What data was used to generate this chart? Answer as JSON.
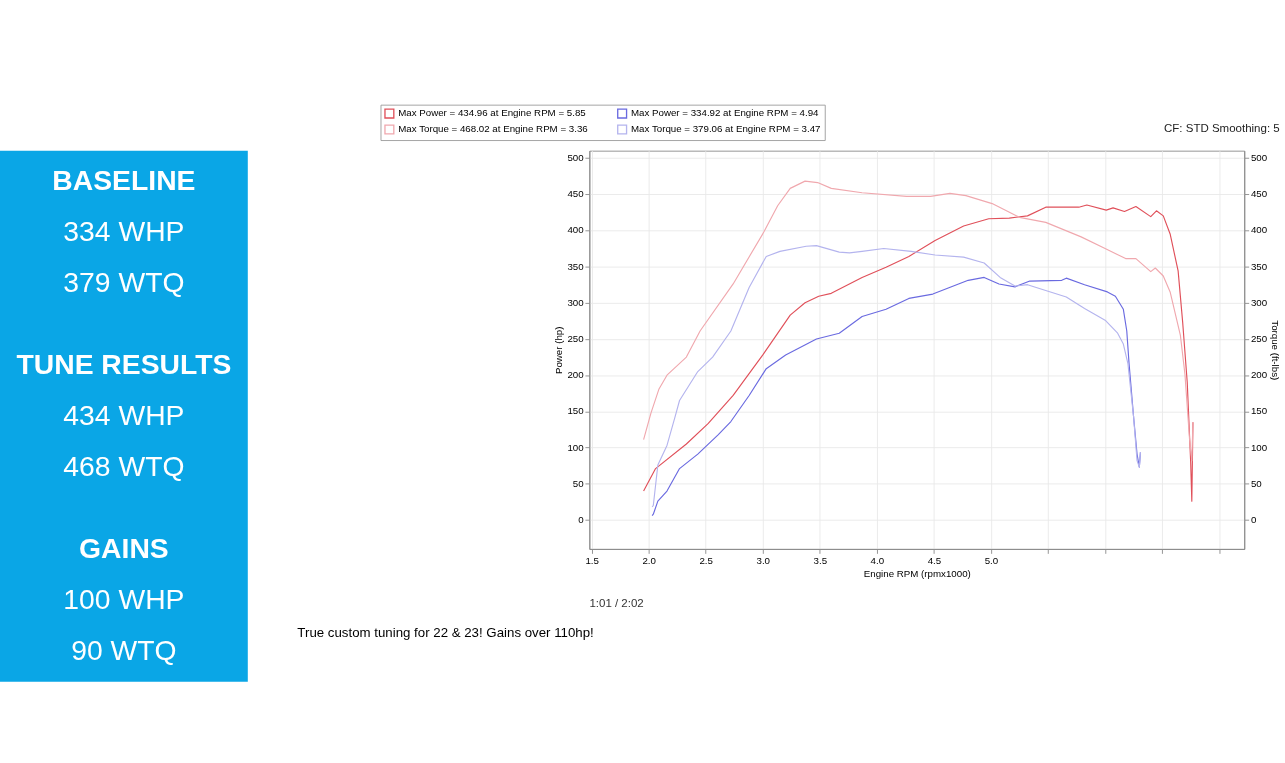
{
  "chart_data": [
    {
      "type": "other",
      "annotations": [
        "BASELINE",
        "334 WHP",
        "379 WTQ",
        "TUNE RESULTS",
        "434 WHP",
        "468 WTQ",
        "GAINS",
        "100 WHP",
        "90  WTQ"
      ]
    },
    {
      "type": "line",
      "xlabel": "Engine RPM (rpmx1000)",
      "ylabel": "Power (hp)",
      "y2label": "Torque (ft-lbs)",
      "xlim": [
        1.48,
        7.22
      ],
      "ylim": [
        -40,
        510
      ],
      "y2lim": [
        -40,
        510
      ],
      "xticks": [
        {
          "value": 1.5,
          "label": "1.5"
        },
        {
          "value": 2,
          "label": "2.0"
        },
        {
          "value": 2.5,
          "label": "2.5"
        },
        {
          "value": 3,
          "label": "3.0"
        },
        {
          "value": 3.5,
          "label": "3.5"
        },
        {
          "value": 4,
          "label": "4.0"
        },
        {
          "value": 4.5,
          "label": "4.5"
        },
        {
          "value": 5,
          "label": "5.0"
        },
        {
          "value": 5.5,
          "label": null
        },
        {
          "value": 6,
          "label": null
        },
        {
          "value": 6.5,
          "label": null
        },
        {
          "value": 7,
          "label": null
        }
      ],
      "yticks": [
        0,
        50,
        100,
        150,
        200,
        250,
        300,
        350,
        400,
        450,
        500
      ],
      "y2ticks": [
        0,
        50,
        100,
        150,
        200,
        250,
        300,
        350,
        400,
        450,
        500
      ],
      "grid": true,
      "legend": "top",
      "line_style": "solid",
      "series": [
        {
          "name": "Max Power = 434.96 at Engine RPM = 5.85",
          "color": "#e0505a",
          "x": [
            1.955,
            2.06,
            2.33,
            2.52,
            2.74,
            3.0,
            3.24,
            3.37,
            3.49,
            3.6,
            3.87,
            4.08,
            4.28,
            4.51,
            4.76,
            4.98,
            5.16,
            5.32,
            5.48,
            5.77,
            5.84,
            6.01,
            6.07,
            6.17,
            6.27,
            6.4,
            6.45,
            6.51,
            6.57,
            6.64,
            6.68,
            6.72,
            6.75,
            6.76,
            6.77
          ],
          "values": [
            40,
            71,
            105,
            133,
            172,
            228,
            283,
            300,
            309,
            313,
            335,
            349,
            364,
            386,
            406,
            416,
            417,
            420,
            432,
            432,
            435,
            428,
            431,
            426,
            433,
            419,
            427,
            420,
            395,
            344,
            273,
            190,
            80,
            26,
            135
          ]
        },
        {
          "name": "Max Torque = 468.02 at Engine RPM = 3.36",
          "color": "#f0a8ae",
          "axis": "y2",
          "x": [
            1.955,
            2.02,
            2.09,
            2.16,
            2.33,
            2.45,
            2.74,
            3.01,
            3.13,
            3.24,
            3.37,
            3.48,
            3.6,
            3.87,
            4.26,
            4.47,
            4.64,
            4.78,
            5.01,
            5.25,
            5.48,
            5.79,
            6.0,
            6.18,
            6.27,
            6.4,
            6.44,
            6.51,
            6.57,
            6.66,
            6.7,
            6.74,
            6.76,
            6.77
          ],
          "values": [
            111,
            148,
            181,
            200,
            225,
            261,
            326,
            398,
            434,
            458,
            468,
            466,
            458,
            452,
            447,
            447,
            451,
            448,
            437,
            418,
            411,
            391,
            375,
            361,
            361,
            343,
            348,
            337,
            315,
            255,
            201,
            112,
            82,
            135
          ]
        },
        {
          "name": "Max Power = 334.92 at Engine RPM = 4.94",
          "color": "#6a6ae0",
          "x": [
            2.03,
            2.04,
            2.08,
            2.16,
            2.27,
            2.43,
            2.61,
            2.72,
            2.88,
            3.03,
            3.2,
            3.47,
            3.67,
            3.87,
            4.08,
            4.28,
            4.49,
            4.8,
            4.94,
            5.07,
            5.21,
            5.34,
            5.62,
            5.66,
            5.82,
            6.02,
            6.09,
            6.16,
            6.19,
            6.21,
            6.25,
            6.28,
            6.3,
            6.31
          ],
          "values": [
            6,
            8,
            26,
            40,
            71,
            91,
            118,
            136,
            172,
            209,
            228,
            250,
            258,
            281,
            291,
            306,
            312,
            331,
            335,
            326,
            322,
            330,
            331,
            334,
            325,
            315,
            309,
            291,
            261,
            216,
            142,
            91,
            73,
            94
          ]
        },
        {
          "name": "Max Torque = 379.06 at Engine RPM = 3.47",
          "color": "#b4b4ee",
          "axis": "y2",
          "x": [
            2.03,
            2.04,
            2.08,
            2.16,
            2.23,
            2.27,
            2.43,
            2.56,
            2.72,
            2.88,
            3.03,
            3.15,
            3.38,
            3.47,
            3.67,
            3.76,
            3.87,
            4.06,
            4.3,
            4.51,
            4.76,
            4.94,
            5.08,
            5.21,
            5.32,
            5.66,
            5.82,
            6.0,
            6.11,
            6.16,
            6.2,
            6.21,
            6.25,
            6.28,
            6.3,
            6.31
          ],
          "values": [
            18,
            20,
            76,
            103,
            142,
            165,
            205,
            225,
            261,
            321,
            364,
            371,
            378,
            379,
            370,
            369,
            371,
            375,
            371,
            366,
            363,
            355,
            335,
            323,
            325,
            308,
            292,
            276,
            258,
            243,
            216,
            201,
            142,
            82,
            73,
            94
          ]
        }
      ],
      "annotations": [
        "CF: STD Smoothing: 5",
        "True custom tuning for 22 & 23! Gains over 110hp!",
        "1:01 / 2:02"
      ]
    }
  ]
}
